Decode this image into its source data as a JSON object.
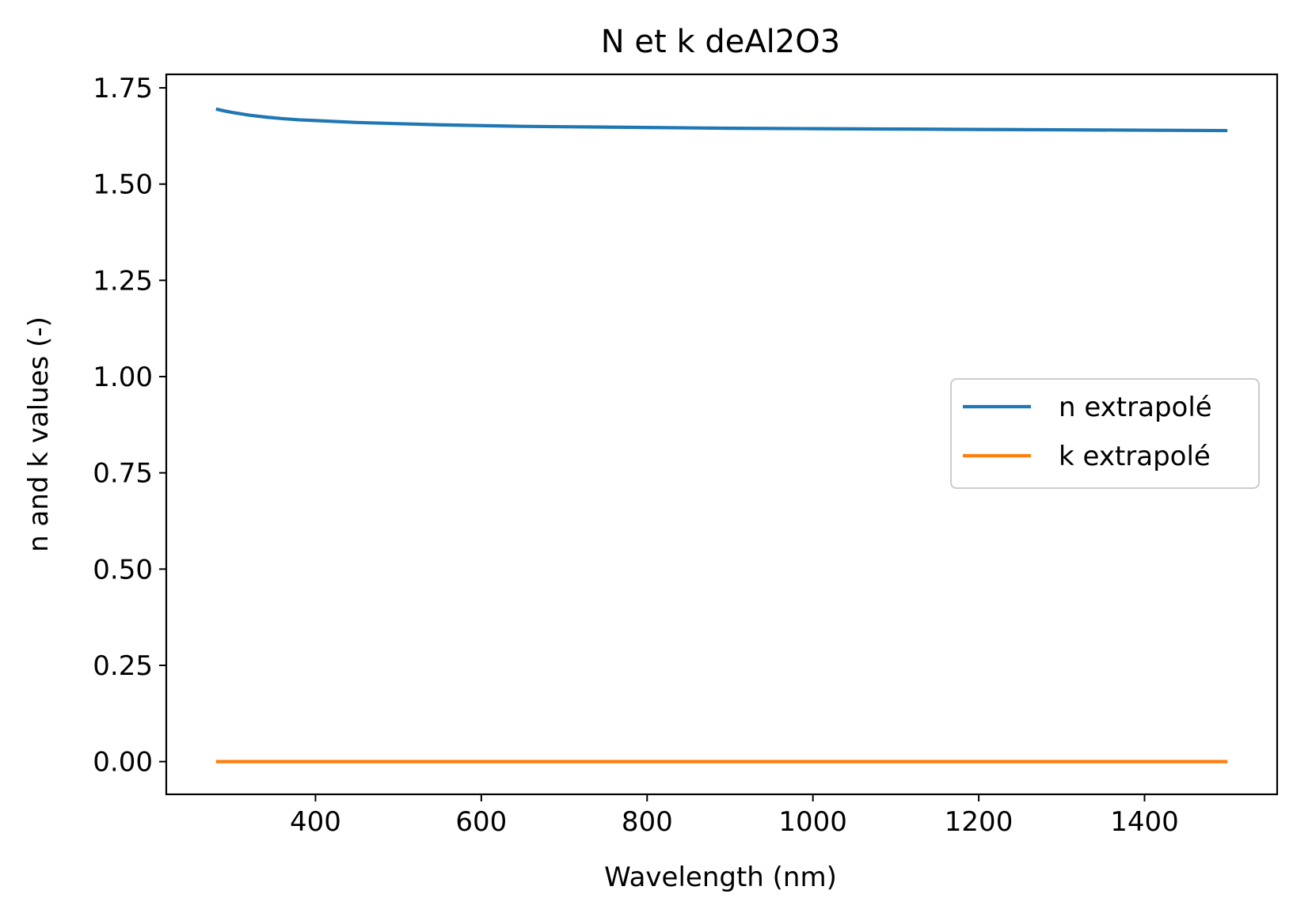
{
  "chart_data": {
    "type": "line",
    "title": "N et k deAl2O3",
    "xlabel": "Wavelength (nm)",
    "ylabel": "n and k values (-)",
    "xlim": [
      220,
      1560
    ],
    "ylim": [
      -0.085,
      1.785
    ],
    "xticks": [
      400,
      600,
      800,
      1000,
      1200,
      1400
    ],
    "xtick_labels": [
      "400",
      "600",
      "800",
      "1000",
      "1200",
      "1400"
    ],
    "yticks": [
      0.0,
      0.25,
      0.5,
      0.75,
      1.0,
      1.25,
      1.5,
      1.75
    ],
    "ytick_labels": [
      "0.00",
      "0.25",
      "0.50",
      "0.75",
      "1.00",
      "1.25",
      "1.50",
      "1.75"
    ],
    "grid": false,
    "legend_position": "center-right",
    "series": [
      {
        "name": "n extrapolé",
        "color": "#1f77b4",
        "x": [
          280,
          290,
          300,
          320,
          340,
          360,
          380,
          400,
          450,
          500,
          550,
          600,
          650,
          700,
          800,
          900,
          1000,
          1100,
          1200,
          1300,
          1400,
          1500
        ],
        "y": [
          1.695,
          1.69,
          1.686,
          1.679,
          1.674,
          1.67,
          1.667,
          1.665,
          1.66,
          1.657,
          1.654,
          1.652,
          1.65,
          1.649,
          1.647,
          1.645,
          1.644,
          1.643,
          1.642,
          1.641,
          1.64,
          1.639
        ]
      },
      {
        "name": "k extrapolé",
        "color": "#ff7f0e",
        "x": [
          280,
          1500
        ],
        "y": [
          0.0,
          0.0
        ]
      }
    ]
  }
}
